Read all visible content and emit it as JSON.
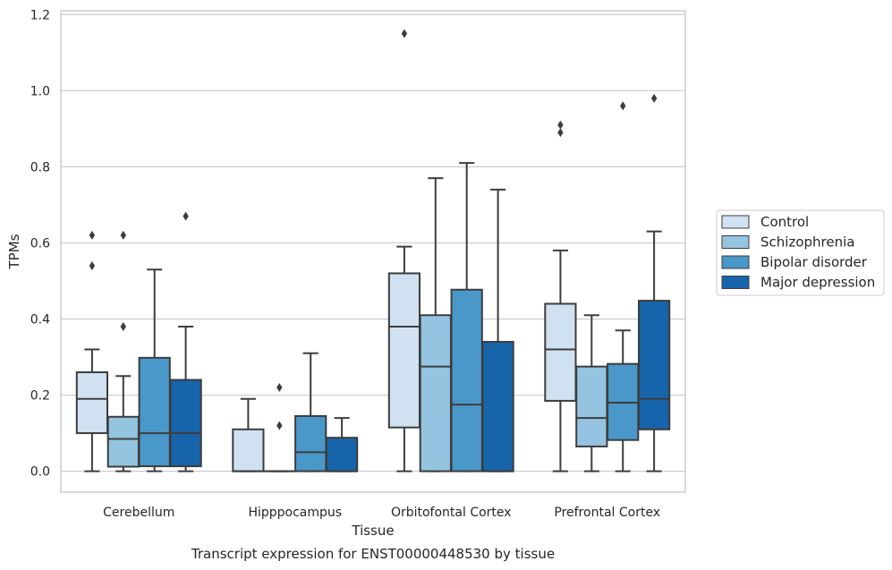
{
  "chart_data": {
    "type": "box",
    "caption": "Transcript expression for ENST00000448530 by tissue",
    "xlabel": "Tissue",
    "ylabel": "TPMs",
    "ylim": [
      -0.055,
      1.21
    ],
    "yticks": [
      "0.0",
      "0.2",
      "0.4",
      "0.6",
      "0.8",
      "1.0",
      "1.2"
    ],
    "grid": "horizontal",
    "legend_position": "right",
    "categories": [
      "Cerebellum",
      "Hipppocampus",
      "Orbitofontal Cortex",
      "Prefrontal Cortex"
    ],
    "series": [
      {
        "name": "Control",
        "color": "#d0e1f2",
        "boxes": [
          {
            "whislo": 0.0,
            "q1": 0.1,
            "med": 0.19,
            "q3": 0.26,
            "whishi": 0.32,
            "fliers": [
              0.54,
              0.62
            ]
          },
          {
            "whislo": 0.0,
            "q1": 0.0,
            "med": 0.0,
            "q3": 0.11,
            "whishi": 0.19,
            "fliers": []
          },
          {
            "whislo": 0.0,
            "q1": 0.115,
            "med": 0.38,
            "q3": 0.52,
            "whishi": 0.59,
            "fliers": [
              1.15
            ]
          },
          {
            "whislo": 0.0,
            "q1": 0.185,
            "med": 0.32,
            "q3": 0.44,
            "whishi": 0.58,
            "fliers": [
              0.89,
              0.91
            ]
          }
        ]
      },
      {
        "name": "Schizophrenia",
        "color": "#94c4df",
        "boxes": [
          {
            "whislo": 0.0,
            "q1": 0.012,
            "med": 0.085,
            "q3": 0.143,
            "whishi": 0.25,
            "fliers": [
              0.38,
              0.62
            ]
          },
          {
            "whislo": 0.0,
            "q1": 0.0,
            "med": 0.0,
            "q3": 0.0,
            "whishi": 0.0,
            "fliers": [
              0.12,
              0.22
            ]
          },
          {
            "whislo": 0.0,
            "q1": 0.0,
            "med": 0.275,
            "q3": 0.41,
            "whishi": 0.77,
            "fliers": []
          },
          {
            "whislo": 0.0,
            "q1": 0.065,
            "med": 0.14,
            "q3": 0.275,
            "whishi": 0.41,
            "fliers": []
          }
        ]
      },
      {
        "name": "Bipolar disorder",
        "color": "#4a98c9",
        "boxes": [
          {
            "whislo": 0.0,
            "q1": 0.013,
            "med": 0.1,
            "q3": 0.298,
            "whishi": 0.53,
            "fliers": []
          },
          {
            "whislo": 0.0,
            "q1": 0.0,
            "med": 0.05,
            "q3": 0.145,
            "whishi": 0.31,
            "fliers": []
          },
          {
            "whislo": 0.0,
            "q1": 0.0,
            "med": 0.175,
            "q3": 0.477,
            "whishi": 0.81,
            "fliers": []
          },
          {
            "whislo": 0.0,
            "q1": 0.082,
            "med": 0.18,
            "q3": 0.282,
            "whishi": 0.37,
            "fliers": [
              0.96
            ]
          }
        ]
      },
      {
        "name": "Major depression",
        "color": "#1764ab",
        "boxes": [
          {
            "whislo": 0.0,
            "q1": 0.013,
            "med": 0.1,
            "q3": 0.24,
            "whishi": 0.38,
            "fliers": [
              0.67
            ]
          },
          {
            "whislo": 0.0,
            "q1": 0.0,
            "med": 0.0,
            "q3": 0.088,
            "whishi": 0.14,
            "fliers": []
          },
          {
            "whislo": 0.0,
            "q1": 0.0,
            "med": 0.0,
            "q3": 0.34,
            "whishi": 0.74,
            "fliers": []
          },
          {
            "whislo": 0.0,
            "q1": 0.11,
            "med": 0.19,
            "q3": 0.448,
            "whishi": 0.63,
            "fliers": [
              0.98
            ]
          }
        ]
      }
    ]
  }
}
